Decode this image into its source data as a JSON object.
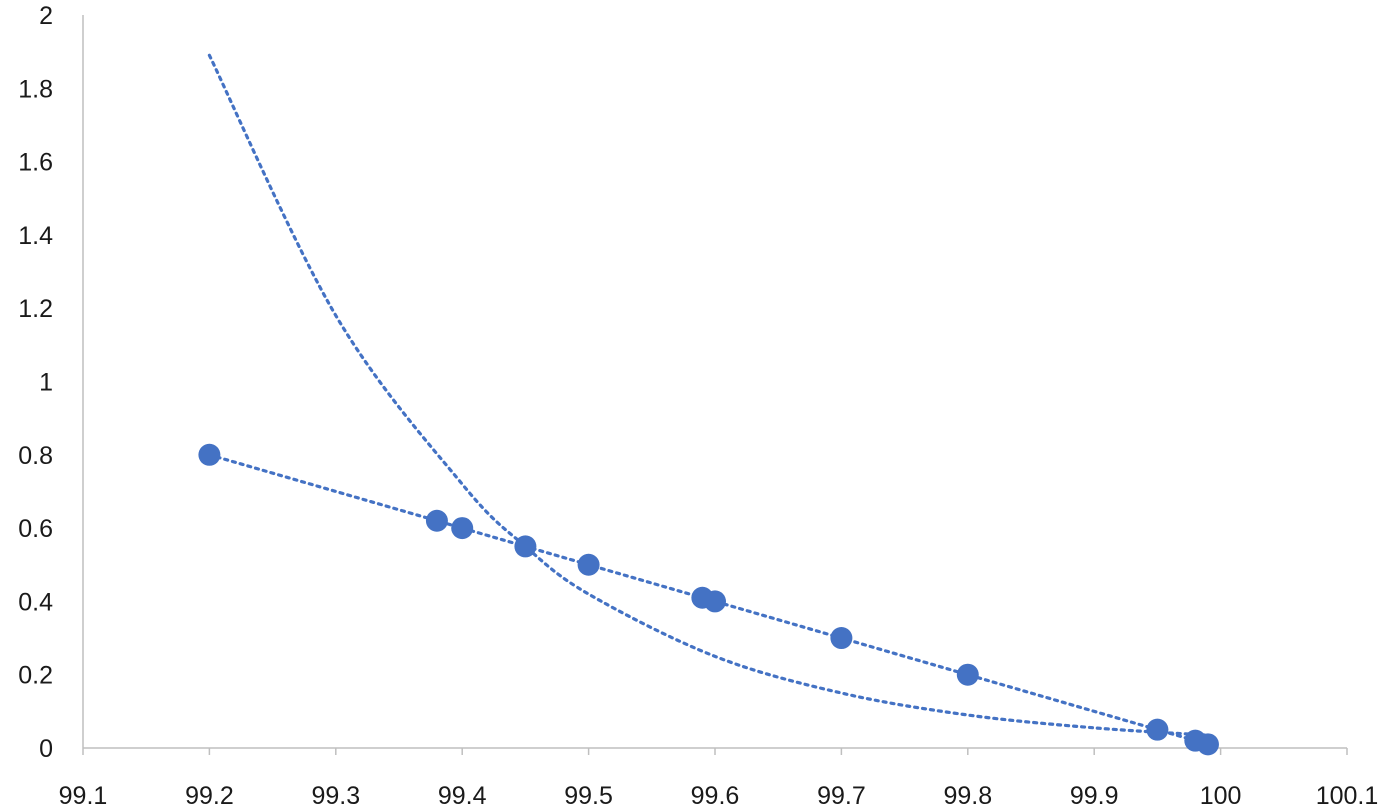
{
  "chart_data": {
    "type": "scatter",
    "title": "",
    "xlabel": "",
    "ylabel": "",
    "xlim": [
      99.1,
      100.1
    ],
    "ylim": [
      0,
      2
    ],
    "x_ticks": [
      99.1,
      99.2,
      99.3,
      99.4,
      99.5,
      99.6,
      99.7,
      99.8,
      99.9,
      100,
      100.1
    ],
    "x_tick_labels": [
      "99.1",
      "99.2",
      "99.3",
      "99.4",
      "99.5",
      "99.6",
      "99.7",
      "99.8",
      "99.9",
      "100",
      "100.1"
    ],
    "y_ticks": [
      0,
      0.2,
      0.4,
      0.6,
      0.8,
      1,
      1.2,
      1.4,
      1.6,
      1.8,
      2
    ],
    "y_tick_labels": [
      "0",
      "0.2",
      "0.4",
      "0.6",
      "0.8",
      "1",
      "1.2",
      "1.4",
      "1.6",
      "1.8",
      "2"
    ],
    "grid": false,
    "legend": "none",
    "series": [
      {
        "points": [
          {
            "x": 99.2,
            "y": 0.8
          },
          {
            "x": 99.38,
            "y": 0.62
          },
          {
            "x": 99.4,
            "y": 0.6
          },
          {
            "x": 99.45,
            "y": 0.55
          },
          {
            "x": 99.5,
            "y": 0.5
          },
          {
            "x": 99.59,
            "y": 0.41
          },
          {
            "x": 99.6,
            "y": 0.4
          },
          {
            "x": 99.7,
            "y": 0.3
          },
          {
            "x": 99.8,
            "y": 0.2
          },
          {
            "x": 99.95,
            "y": 0.05
          },
          {
            "x": 99.98,
            "y": 0.02
          },
          {
            "x": 99.99,
            "y": 0.01
          }
        ],
        "color": "#4472C4"
      }
    ],
    "trendlines": [
      {
        "kind": "linear",
        "style": "dotted",
        "color": "#4472C4",
        "x_range": [
          99.2,
          99.99
        ]
      },
      {
        "kind": "exponential",
        "style": "dotted",
        "color": "#4472C4",
        "x_range": [
          99.2,
          99.99
        ],
        "curve_points": [
          {
            "x": 99.2,
            "y": 1.89
          },
          {
            "x": 99.3,
            "y": 1.18
          },
          {
            "x": 99.4,
            "y": 0.72
          },
          {
            "x": 99.45,
            "y": 0.55
          },
          {
            "x": 99.5,
            "y": 0.42
          },
          {
            "x": 99.6,
            "y": 0.25
          },
          {
            "x": 99.7,
            "y": 0.15
          },
          {
            "x": 99.8,
            "y": 0.09
          },
          {
            "x": 99.9,
            "y": 0.055
          },
          {
            "x": 99.99,
            "y": 0.035
          }
        ]
      }
    ]
  }
}
